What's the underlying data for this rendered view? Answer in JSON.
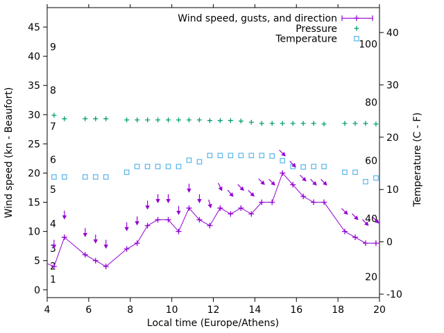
{
  "chart_data": {
    "type": "line",
    "title": "",
    "xlabel": "Local time (Europe/Athens)",
    "ylabel": "Wind speed (kn - Beaufort)",
    "y2label": "Temperature (C - F)",
    "x_range": [
      4,
      20
    ],
    "y_range": [
      -1.33,
      48.33
    ],
    "y2_range": [
      -10.66,
      44.76
    ],
    "x_ticks": [
      4,
      6,
      8,
      10,
      12,
      14,
      16,
      18,
      20
    ],
    "y_ticks": [
      0,
      5,
      10,
      15,
      20,
      25,
      30,
      35,
      40,
      45
    ],
    "y2_ticks": [
      -10,
      0,
      10,
      20,
      30,
      40
    ],
    "grid": false,
    "legend_position": "top-right-inside",
    "colors": {
      "wind": "#9400d3",
      "pressure": "#009e73",
      "temperature": "#56b4e9",
      "text": "#000000",
      "background": "#ffffff"
    },
    "beaufort_scale_labels": [
      {
        "label": "1",
        "kn": 1.8
      },
      {
        "label": "2",
        "kn": 4.1
      },
      {
        "label": "3",
        "kn": 7.1
      },
      {
        "label": "4",
        "kn": 11.3
      },
      {
        "label": "5",
        "kn": 17.2
      },
      {
        "label": "6",
        "kn": 22.3
      },
      {
        "label": "7",
        "kn": 28.0
      },
      {
        "label": "8",
        "kn": 34.2
      },
      {
        "label": "9",
        "kn": 41.6
      }
    ],
    "fahrenheit_scale_labels": [
      "20",
      "40",
      "60",
      "80",
      "100"
    ],
    "x_hours": [
      4.33,
      4.83,
      5.83,
      6.33,
      6.83,
      7.83,
      8.33,
      8.83,
      9.33,
      9.83,
      10.33,
      10.83,
      11.33,
      11.83,
      12.33,
      12.83,
      13.33,
      13.83,
      14.33,
      14.83,
      15.33,
      15.83,
      16.33,
      16.83,
      17.33,
      18.33,
      18.83,
      19.33,
      19.83
    ],
    "series": [
      {
        "name": "Wind speed, gusts, and direction",
        "type": "line-with-points-and-direction-vectors",
        "marker": "plus",
        "color": "#9400d3",
        "axis": "left",
        "unit": "kn",
        "values": [
          4,
          9,
          6,
          5,
          4,
          7,
          8,
          11,
          12,
          12,
          10,
          14,
          12,
          11,
          14,
          13,
          14,
          13,
          15,
          15,
          20,
          18,
          16,
          15,
          15,
          10,
          9,
          8,
          8
        ],
        "gusts": [
          7.8,
          12.8,
          9.8,
          8.7,
          7.8,
          10.8,
          11.8,
          14.5,
          15.6,
          15.6,
          13.6,
          17.4,
          15.6,
          14.7,
          17.6,
          16.5,
          17.5,
          16.5,
          18.5,
          18.4,
          23.4,
          21.5,
          19.1,
          18.4,
          18.4,
          13.4,
          12.5,
          11.5,
          11.9
        ],
        "arrow_angles_deg_from_down": [
          0,
          0,
          0,
          0,
          0,
          0,
          0,
          0,
          0,
          0,
          0,
          0,
          0,
          15,
          25,
          40,
          45,
          45,
          45,
          45,
          45,
          45,
          45,
          45,
          45,
          45,
          45,
          45,
          45
        ],
        "lead_in_point": {
          "x": 4.0,
          "value": 4.5
        },
        "lead_out_point": {
          "x": 20.0,
          "value": 8
        }
      },
      {
        "name": "Pressure",
        "type": "points",
        "marker": "plus",
        "color": "#009e73",
        "axis": "left",
        "unit": "inHg",
        "values": [
          29.9,
          29.3,
          29.3,
          29.3,
          29.3,
          29.1,
          29.1,
          29.1,
          29.1,
          29.1,
          29.1,
          29.1,
          29.1,
          29.0,
          29.0,
          29.0,
          28.9,
          28.7,
          28.5,
          28.5,
          28.5,
          28.5,
          28.5,
          28.5,
          28.4,
          28.5,
          28.5,
          28.5,
          28.4
        ]
      },
      {
        "name": "Temperature",
        "type": "points",
        "marker": "open-square",
        "color": "#56b4e9",
        "axis": "right",
        "unit": "C",
        "values": [
          12.4,
          12.4,
          12.4,
          12.4,
          12.4,
          13.3,
          14.4,
          14.4,
          14.4,
          14.4,
          14.4,
          15.6,
          15.3,
          16.5,
          16.5,
          16.5,
          16.5,
          16.5,
          16.5,
          16.4,
          15.5,
          14.4,
          14.3,
          14.4,
          14.4,
          13.3,
          13.3,
          11.5,
          12.2
        ]
      }
    ]
  }
}
